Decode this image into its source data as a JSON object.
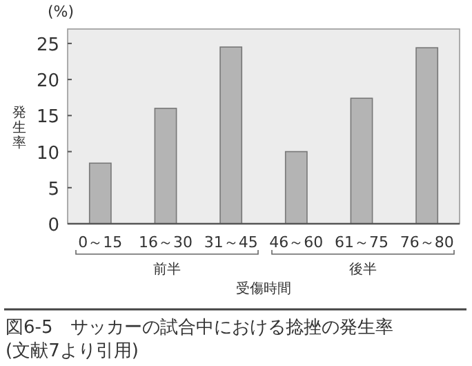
{
  "chart_data": {
    "type": "bar",
    "title": "図6-5　サッカーの試合中における捻挫の発生率",
    "xlabel": "受傷時間",
    "ylabel": "発生率",
    "categories": [
      "0～15",
      "16～30",
      "31～45",
      "46～60",
      "61～75",
      "76～80"
    ],
    "values": [
      8.4,
      16,
      24.5,
      10,
      17.4,
      24.4
    ],
    "color": "#b4b4b4",
    "ylim": [
      0,
      27
    ],
    "yticks": [
      0,
      5,
      10,
      15,
      20,
      25
    ],
    "grid": false,
    "annotations": [
      "(%)",
      "前半",
      "後半",
      "(文献7より引用)"
    ]
  }
}
